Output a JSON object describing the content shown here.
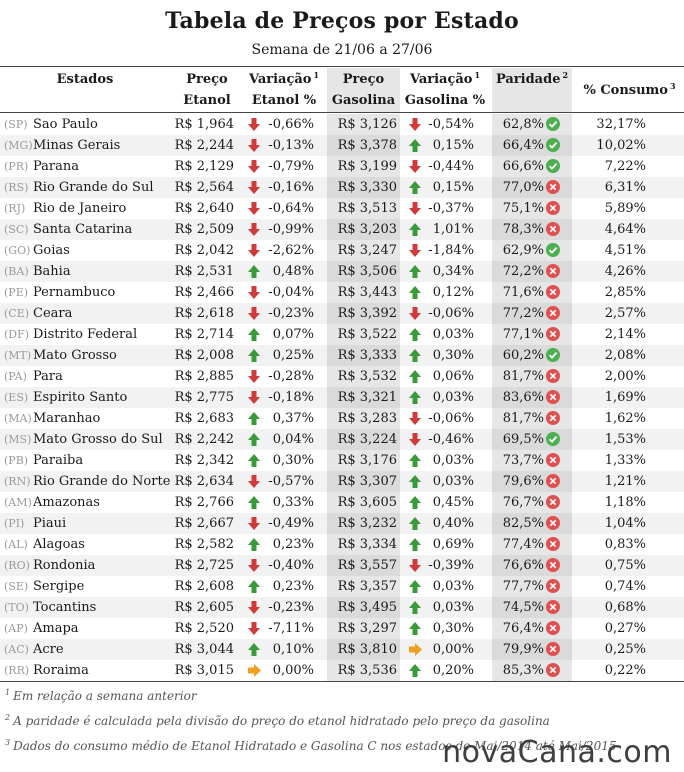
{
  "title": "Tabela de Preços por Estado",
  "subtitle": "Semana de 21/06 a 27/06",
  "headers": {
    "states": "Estados",
    "ethanol_price_1": "Preço",
    "ethanol_price_2": "Etanol",
    "ethanol_var_1": "Variação",
    "ethanol_var_2": "Etanol %",
    "gas_price_1": "Preço",
    "gas_price_2": "Gasolina",
    "gas_var_1": "Variação",
    "gas_var_2": "Gasolina %",
    "parity": "Paridade",
    "consumption": "% Consumo",
    "sup1": "1",
    "sup2": "2",
    "sup3": "3"
  },
  "colors": {
    "arrow_up": "#3a9a3a",
    "arrow_down": "#d03a3a",
    "arrow_flat": "#f0a020",
    "ok": "#4caf50",
    "bad": "#e05050"
  },
  "rows": [
    {
      "code": "(SP)",
      "name": "Sao Paulo",
      "eprice": "R$ 1,964",
      "edir": "down",
      "evar": "-0,66%",
      "gprice": "R$ 3,126",
      "gdir": "down",
      "gvar": "-0,54%",
      "parity": "62,8%",
      "ok": true,
      "cons": "32,17%"
    },
    {
      "code": "(MG)",
      "name": "Minas Gerais",
      "eprice": "R$ 2,244",
      "edir": "down",
      "evar": "-0,13%",
      "gprice": "R$ 3,378",
      "gdir": "up",
      "gvar": "0,15%",
      "parity": "66,4%",
      "ok": true,
      "cons": "10,02%"
    },
    {
      "code": "(PR)",
      "name": "Parana",
      "eprice": "R$ 2,129",
      "edir": "down",
      "evar": "-0,79%",
      "gprice": "R$ 3,199",
      "gdir": "down",
      "gvar": "-0,44%",
      "parity": "66,6%",
      "ok": true,
      "cons": "7,22%"
    },
    {
      "code": "(RS)",
      "name": "Rio Grande do Sul",
      "eprice": "R$ 2,564",
      "edir": "down",
      "evar": "-0,16%",
      "gprice": "R$ 3,330",
      "gdir": "up",
      "gvar": "0,15%",
      "parity": "77,0%",
      "ok": false,
      "cons": "6,31%"
    },
    {
      "code": "(RJ)",
      "name": "Rio de Janeiro",
      "eprice": "R$ 2,640",
      "edir": "down",
      "evar": "-0,64%",
      "gprice": "R$ 3,513",
      "gdir": "down",
      "gvar": "-0,37%",
      "parity": "75,1%",
      "ok": false,
      "cons": "5,89%"
    },
    {
      "code": "(SC)",
      "name": "Santa Catarina",
      "eprice": "R$ 2,509",
      "edir": "down",
      "evar": "-0,99%",
      "gprice": "R$ 3,203",
      "gdir": "up",
      "gvar": "1,01%",
      "parity": "78,3%",
      "ok": false,
      "cons": "4,64%"
    },
    {
      "code": "(GO)",
      "name": "Goias",
      "eprice": "R$ 2,042",
      "edir": "down",
      "evar": "-2,62%",
      "gprice": "R$ 3,247",
      "gdir": "down",
      "gvar": "-1,84%",
      "parity": "62,9%",
      "ok": true,
      "cons": "4,51%"
    },
    {
      "code": "(BA)",
      "name": "Bahia",
      "eprice": "R$ 2,531",
      "edir": "up",
      "evar": "0,48%",
      "gprice": "R$ 3,506",
      "gdir": "up",
      "gvar": "0,34%",
      "parity": "72,2%",
      "ok": false,
      "cons": "4,26%"
    },
    {
      "code": "(PE)",
      "name": "Pernambuco",
      "eprice": "R$ 2,466",
      "edir": "down",
      "evar": "-0,04%",
      "gprice": "R$ 3,443",
      "gdir": "up",
      "gvar": "0,12%",
      "parity": "71,6%",
      "ok": false,
      "cons": "2,85%"
    },
    {
      "code": "(CE)",
      "name": "Ceara",
      "eprice": "R$ 2,618",
      "edir": "down",
      "evar": "-0,23%",
      "gprice": "R$ 3,392",
      "gdir": "down",
      "gvar": "-0,06%",
      "parity": "77,2%",
      "ok": false,
      "cons": "2,57%"
    },
    {
      "code": "(DF)",
      "name": "Distrito Federal",
      "eprice": "R$ 2,714",
      "edir": "up",
      "evar": "0,07%",
      "gprice": "R$ 3,522",
      "gdir": "up",
      "gvar": "0,03%",
      "parity": "77,1%",
      "ok": false,
      "cons": "2,14%"
    },
    {
      "code": "(MT)",
      "name": "Mato Grosso",
      "eprice": "R$ 2,008",
      "edir": "up",
      "evar": "0,25%",
      "gprice": "R$ 3,333",
      "gdir": "up",
      "gvar": "0,30%",
      "parity": "60,2%",
      "ok": true,
      "cons": "2,08%"
    },
    {
      "code": "(PA)",
      "name": "Para",
      "eprice": "R$ 2,885",
      "edir": "down",
      "evar": "-0,28%",
      "gprice": "R$ 3,532",
      "gdir": "up",
      "gvar": "0,06%",
      "parity": "81,7%",
      "ok": false,
      "cons": "2,00%"
    },
    {
      "code": "(ES)",
      "name": "Espirito Santo",
      "eprice": "R$ 2,775",
      "edir": "down",
      "evar": "-0,18%",
      "gprice": "R$ 3,321",
      "gdir": "up",
      "gvar": "0,03%",
      "parity": "83,6%",
      "ok": false,
      "cons": "1,69%"
    },
    {
      "code": "(MA)",
      "name": "Maranhao",
      "eprice": "R$ 2,683",
      "edir": "up",
      "evar": "0,37%",
      "gprice": "R$ 3,283",
      "gdir": "down",
      "gvar": "-0,06%",
      "parity": "81,7%",
      "ok": false,
      "cons": "1,62%"
    },
    {
      "code": "(MS)",
      "name": "Mato Grosso do Sul",
      "eprice": "R$ 2,242",
      "edir": "up",
      "evar": "0,04%",
      "gprice": "R$ 3,224",
      "gdir": "down",
      "gvar": "-0,46%",
      "parity": "69,5%",
      "ok": true,
      "cons": "1,53%"
    },
    {
      "code": "(PB)",
      "name": "Paraiba",
      "eprice": "R$ 2,342",
      "edir": "up",
      "evar": "0,30%",
      "gprice": "R$ 3,176",
      "gdir": "up",
      "gvar": "0,03%",
      "parity": "73,7%",
      "ok": false,
      "cons": "1,33%"
    },
    {
      "code": "(RN)",
      "name": "Rio Grande do Norte",
      "eprice": "R$ 2,634",
      "edir": "down",
      "evar": "-0,57%",
      "gprice": "R$ 3,307",
      "gdir": "up",
      "gvar": "0,03%",
      "parity": "79,6%",
      "ok": false,
      "cons": "1,21%"
    },
    {
      "code": "(AM)",
      "name": "Amazonas",
      "eprice": "R$ 2,766",
      "edir": "up",
      "evar": "0,33%",
      "gprice": "R$ 3,605",
      "gdir": "up",
      "gvar": "0,45%",
      "parity": "76,7%",
      "ok": false,
      "cons": "1,18%"
    },
    {
      "code": "(PI)",
      "name": "Piaui",
      "eprice": "R$ 2,667",
      "edir": "down",
      "evar": "-0,49%",
      "gprice": "R$ 3,232",
      "gdir": "up",
      "gvar": "0,40%",
      "parity": "82,5%",
      "ok": false,
      "cons": "1,04%"
    },
    {
      "code": "(AL)",
      "name": "Alagoas",
      "eprice": "R$ 2,582",
      "edir": "up",
      "evar": "0,23%",
      "gprice": "R$ 3,334",
      "gdir": "up",
      "gvar": "0,69%",
      "parity": "77,4%",
      "ok": false,
      "cons": "0,83%"
    },
    {
      "code": "(RO)",
      "name": "Rondonia",
      "eprice": "R$ 2,725",
      "edir": "down",
      "evar": "-0,40%",
      "gprice": "R$ 3,557",
      "gdir": "down",
      "gvar": "-0,39%",
      "parity": "76,6%",
      "ok": false,
      "cons": "0,75%"
    },
    {
      "code": "(SE)",
      "name": "Sergipe",
      "eprice": "R$ 2,608",
      "edir": "up",
      "evar": "0,23%",
      "gprice": "R$ 3,357",
      "gdir": "up",
      "gvar": "0,03%",
      "parity": "77,7%",
      "ok": false,
      "cons": "0,74%"
    },
    {
      "code": "(TO)",
      "name": "Tocantins",
      "eprice": "R$ 2,605",
      "edir": "down",
      "evar": "-0,23%",
      "gprice": "R$ 3,495",
      "gdir": "up",
      "gvar": "0,03%",
      "parity": "74,5%",
      "ok": false,
      "cons": "0,68%"
    },
    {
      "code": "(AP)",
      "name": "Amapa",
      "eprice": "R$ 2,520",
      "edir": "down",
      "evar": "-7,11%",
      "gprice": "R$ 3,297",
      "gdir": "up",
      "gvar": "0,30%",
      "parity": "76,4%",
      "ok": false,
      "cons": "0,27%"
    },
    {
      "code": "(AC)",
      "name": "Acre",
      "eprice": "R$ 3,044",
      "edir": "up",
      "evar": "0,10%",
      "gprice": "R$ 3,810",
      "gdir": "flat",
      "gvar": "0,00%",
      "parity": "79,9%",
      "ok": false,
      "cons": "0,25%"
    },
    {
      "code": "(RR)",
      "name": "Roraima",
      "eprice": "R$ 3,015",
      "edir": "flat",
      "evar": "0,00%",
      "gprice": "R$ 3,536",
      "gdir": "up",
      "gvar": "0,20%",
      "parity": "85,3%",
      "ok": false,
      "cons": "0,22%"
    }
  ],
  "notes": {
    "n1_mark": "1",
    "n1": "Em relação a semana anterior",
    "n2_mark": "2",
    "n2": "A paridade é calculada pela divisão do preço do etanol hidratado pelo preço da gasolina",
    "n3_mark": "3",
    "n3": "Dados do consumo médio de Etanol Hidratado e Gasolina C nos estados de Mai/2014 até Mai/2015"
  },
  "logo": "novaCana.com"
}
